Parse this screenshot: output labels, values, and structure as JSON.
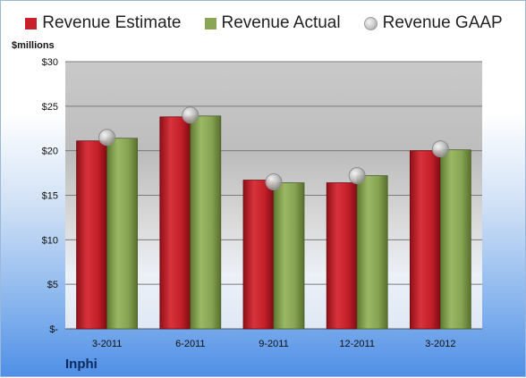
{
  "chart_data": {
    "type": "bar",
    "title": "",
    "unit_label": "$millions",
    "categories": [
      "3-2011",
      "6-2011",
      "9-2011",
      "12-2011",
      "3-2012"
    ],
    "series": [
      {
        "name": "Revenue Estimate",
        "color": "#c8202b",
        "values": [
          21.1,
          23.8,
          16.7,
          16.4,
          20.0
        ]
      },
      {
        "name": "Revenue Actual",
        "color": "#8aa555",
        "values": [
          21.4,
          23.9,
          16.4,
          17.2,
          20.1
        ]
      }
    ],
    "gaap_series": {
      "name": "Revenue GAAP",
      "values": [
        21.5,
        24.0,
        16.5,
        17.2,
        20.2
      ]
    },
    "y_ticks": [
      {
        "value": 0,
        "label": "$-"
      },
      {
        "value": 5,
        "label": "$5"
      },
      {
        "value": 10,
        "label": "$10"
      },
      {
        "value": 15,
        "label": "$15"
      },
      {
        "value": 20,
        "label": "$20"
      },
      {
        "value": 25,
        "label": "$25"
      },
      {
        "value": 30,
        "label": "$30"
      }
    ],
    "ylim": [
      0,
      30
    ],
    "grid": true,
    "legend_position": "top"
  },
  "footer": {
    "company": "Inphi"
  }
}
